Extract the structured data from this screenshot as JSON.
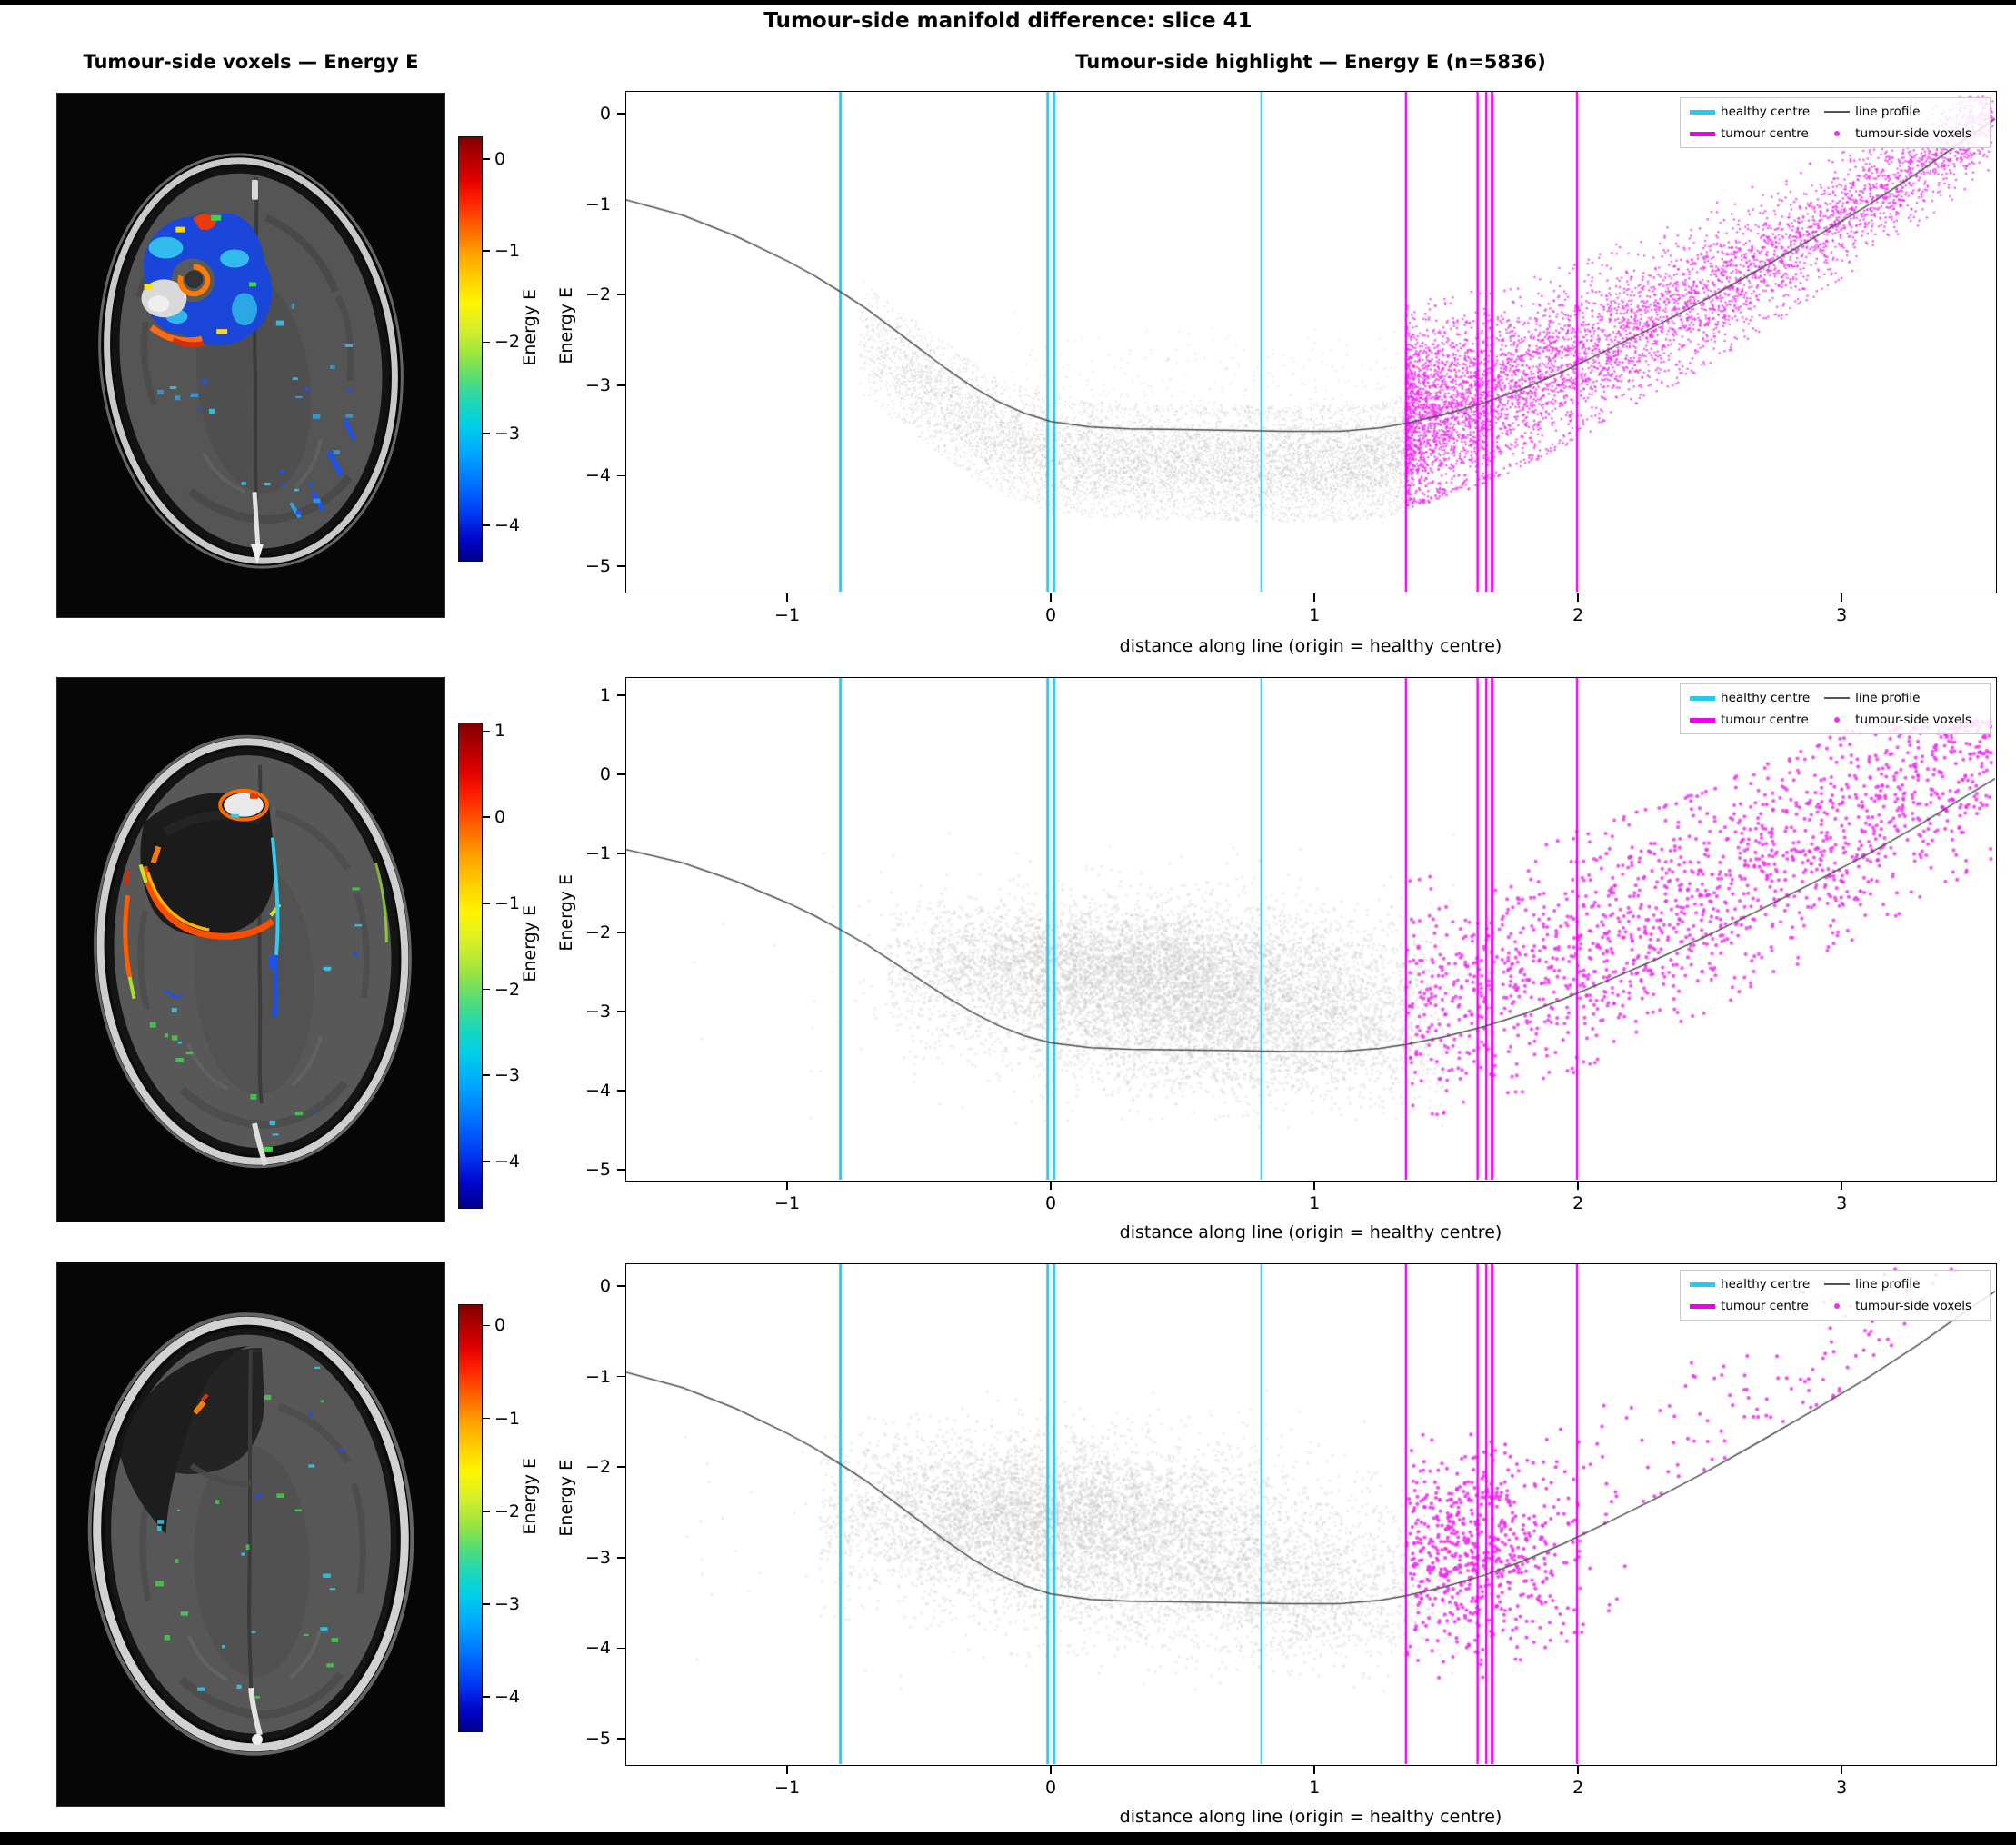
{
  "figure": {
    "suptitle": "Tumour-side manifold difference: slice 41",
    "background": "#ffffff",
    "border_color": "#000000"
  },
  "colors": {
    "healthy_centre_line": "#29c7ef",
    "tumour_centre_line": "#ee00ee",
    "tumour_scatter": "#ee30ee",
    "healthy_scatter": "#c4c4c4",
    "line_profile": "#4d4d4d",
    "axis_text": "#000000"
  },
  "left_panel": {
    "title": "Tumour-side voxels — Energy E",
    "colorbar_label": "Energy E"
  },
  "right_panel": {
    "title": "Tumour-side highlight — Energy E  (n=5836)",
    "xlabel": "distance along line  (origin = healthy centre)",
    "ylabel": "Energy E",
    "n_tumour_voxels": 5836
  },
  "legend": {
    "items": [
      {
        "label": "healthy centre",
        "swatch": "cyan-line"
      },
      {
        "label": "tumour centre",
        "swatch": "magenta-line"
      },
      {
        "label": "line profile",
        "swatch": "gray-line"
      },
      {
        "label": "tumour-side voxels",
        "swatch": "magenta-dot"
      }
    ]
  },
  "chart_data": [
    {
      "type": "scatter",
      "title": "Tumour-side highlight — Energy E  (n=5836)",
      "xlabel": "distance along line  (origin = healthy centre)",
      "ylabel": "Energy E",
      "xlim": [
        -1.614,
        3.589
      ],
      "ylim": [
        -5.3,
        0.25
      ],
      "xticks": [
        -1,
        0,
        1,
        2,
        3
      ],
      "yticks": [
        0,
        -1,
        -2,
        -3,
        -4,
        -5
      ],
      "vlines_healthy_centre": [
        -0.8,
        -0.012,
        0.012,
        0.8
      ],
      "vlines_tumour_centre": [
        1.35,
        1.622,
        1.655,
        1.677,
        2.0
      ],
      "line_profile": {
        "x": [
          -1.614,
          -1.4,
          -1.2,
          -1.0,
          -0.9,
          -0.8,
          -0.7,
          -0.6,
          -0.5,
          -0.4,
          -0.3,
          -0.2,
          -0.1,
          0,
          0.15,
          0.3,
          0.5,
          0.7,
          0.9,
          1.1,
          1.25,
          1.35,
          1.5,
          1.65,
          1.8,
          1.95,
          2.1,
          2.3,
          2.5,
          2.7,
          2.9,
          3.1,
          3.3,
          3.45,
          3.589
        ],
        "y": [
          -0.95,
          -1.12,
          -1.35,
          -1.63,
          -1.79,
          -1.97,
          -2.16,
          -2.38,
          -2.6,
          -2.82,
          -3.02,
          -3.19,
          -3.32,
          -3.41,
          -3.47,
          -3.49,
          -3.5,
          -3.51,
          -3.52,
          -3.52,
          -3.48,
          -3.43,
          -3.33,
          -3.2,
          -3.04,
          -2.85,
          -2.64,
          -2.35,
          -2.04,
          -1.71,
          -1.37,
          -1.02,
          -0.64,
          -0.33,
          -0.05
        ]
      },
      "healthy_cloud": {
        "seed": 101,
        "color": "#c4c4c4",
        "alpha": 0.35,
        "size": 1.15,
        "components": [
          {
            "type": "band",
            "n": 8200,
            "x0": -0.73,
            "x1": 1.38,
            "xpow": 0.82,
            "dy": -0.37,
            "sd": 0.32,
            "clampLo": -1.0,
            "clampHi": 0.28
          },
          {
            "type": "band",
            "n": 260,
            "x0": -0.15,
            "x1": 1.38,
            "xpow": 1.0,
            "dy": 0.5,
            "sd": 0.3,
            "clampLo": 0.2,
            "clampHi": 1.15
          }
        ]
      },
      "tumour_cloud": {
        "seed": 111,
        "n": 5836,
        "color": "#ee30ee",
        "alpha": 0.75,
        "size": 1.3,
        "components": [
          {
            "type": "band",
            "n": 5836,
            "x0": 1.35,
            "x1": 3.58,
            "xpow": 1.75,
            "dy": 0.05,
            "sd": 0.5,
            "sdSlope": -0.12,
            "clampLo": -0.95,
            "clampLoSlope": 0.18,
            "clampHi": 1.35,
            "clampHiSlope": -0.28,
            "ycap": 0.2
          }
        ]
      },
      "colorbar": {
        "label": "Energy E",
        "ticks": [
          0,
          -1,
          -2,
          -3,
          -4
        ],
        "vmax": 0.25,
        "vmin": -4.4
      }
    },
    {
      "type": "scatter",
      "title": "",
      "xlabel": "distance along line  (origin = healthy centre)",
      "ylabel": "Energy E",
      "xlim": [
        -1.614,
        3.589
      ],
      "ylim": [
        -5.15,
        1.23
      ],
      "xticks": [
        -1,
        0,
        1,
        2,
        3
      ],
      "yticks": [
        1,
        0,
        -1,
        -2,
        -3,
        -4,
        -5
      ],
      "vlines_healthy_centre": [
        -0.8,
        -0.012,
        0.012,
        0.8
      ],
      "vlines_tumour_centre": [
        1.35,
        1.622,
        1.655,
        1.677,
        2.0
      ],
      "line_profile": {
        "x": [
          -1.614,
          -1.4,
          -1.2,
          -1.0,
          -0.9,
          -0.8,
          -0.7,
          -0.6,
          -0.5,
          -0.4,
          -0.3,
          -0.2,
          -0.1,
          0,
          0.15,
          0.3,
          0.5,
          0.7,
          0.9,
          1.1,
          1.25,
          1.35,
          1.5,
          1.65,
          1.8,
          1.95,
          2.1,
          2.3,
          2.5,
          2.7,
          2.9,
          3.1,
          3.3,
          3.45,
          3.589
        ],
        "y": [
          -0.95,
          -1.12,
          -1.35,
          -1.63,
          -1.79,
          -1.97,
          -2.16,
          -2.38,
          -2.6,
          -2.82,
          -3.02,
          -3.19,
          -3.32,
          -3.41,
          -3.47,
          -3.49,
          -3.5,
          -3.51,
          -3.52,
          -3.52,
          -3.48,
          -3.43,
          -3.33,
          -3.2,
          -3.04,
          -2.85,
          -2.64,
          -2.35,
          -2.04,
          -1.71,
          -1.37,
          -1.02,
          -0.64,
          -0.33,
          -0.05
        ]
      },
      "healthy_cloud": {
        "seed": 202,
        "color": "#c4c4c4",
        "alpha": 0.28,
        "size": 1.75,
        "components": [
          {
            "type": "blob",
            "n": 5200,
            "cx": 0.42,
            "cy": -2.6,
            "sx": 0.52,
            "sy": 0.45,
            "xclip": [
              -0.62,
              1.48
            ],
            "yclip": [
              -4.45,
              -0.85
            ]
          },
          {
            "type": "blob",
            "n": 2300,
            "cx": 0.8,
            "cy": -3.35,
            "sx": 0.45,
            "sy": 0.4,
            "xclip": [
              -0.55,
              1.5
            ],
            "yclip": [
              -4.5,
              -1.5
            ]
          },
          {
            "type": "blob",
            "n": 1300,
            "cx": 0.05,
            "cy": -2.3,
            "sx": 0.38,
            "sy": 0.33,
            "xclip": [
              -0.62,
              1.2
            ],
            "yclip": [
              -4.0,
              -1.2
            ]
          },
          {
            "type": "blob",
            "n": 300,
            "cx": 0.4,
            "cy": -2.5,
            "sx": 0.85,
            "sy": 0.85,
            "xclip": [
              -1.45,
              1.55
            ],
            "yclip": [
              -4.6,
              -0.7
            ]
          }
        ]
      },
      "tumour_cloud": {
        "seed": 222,
        "n": 1650,
        "color": "#ee30ee",
        "alpha": 0.8,
        "size": 2.1,
        "components": [
          {
            "type": "band",
            "n": 1650,
            "x0": 1.35,
            "x1": 3.575,
            "xpow": 0.95,
            "dy": 0.5,
            "sd": 0.68,
            "clampLo": -1.0,
            "clampHi": 2.3,
            "clampHiSlope": -0.35,
            "ycap": 0.7
          }
        ]
      },
      "colorbar": {
        "label": "Energy E",
        "ticks": [
          1,
          0,
          -1,
          -2,
          -3,
          -4
        ],
        "vmax": 1.1,
        "vmin": -4.55
      }
    },
    {
      "type": "scatter",
      "title": "",
      "xlabel": "distance along line  (origin = healthy centre)",
      "ylabel": "Energy E",
      "xlim": [
        -1.614,
        3.589
      ],
      "ylim": [
        -5.3,
        0.25
      ],
      "xticks": [
        -1,
        0,
        1,
        2,
        3
      ],
      "yticks": [
        0,
        -1,
        -2,
        -3,
        -4,
        -5
      ],
      "vlines_healthy_centre": [
        -0.8,
        -0.012,
        0.012,
        0.8
      ],
      "vlines_tumour_centre": [
        1.35,
        1.622,
        1.655,
        1.677,
        2.0
      ],
      "line_profile": {
        "x": [
          -1.614,
          -1.4,
          -1.2,
          -1.0,
          -0.9,
          -0.8,
          -0.7,
          -0.6,
          -0.5,
          -0.4,
          -0.3,
          -0.2,
          -0.1,
          0,
          0.15,
          0.3,
          0.5,
          0.7,
          0.9,
          1.1,
          1.25,
          1.35,
          1.5,
          1.65,
          1.8,
          1.95,
          2.1,
          2.3,
          2.5,
          2.7,
          2.9,
          3.1,
          3.3,
          3.45,
          3.589
        ],
        "y": [
          -0.95,
          -1.12,
          -1.35,
          -1.63,
          -1.79,
          -1.97,
          -2.16,
          -2.38,
          -2.6,
          -2.82,
          -3.02,
          -3.19,
          -3.32,
          -3.41,
          -3.47,
          -3.49,
          -3.5,
          -3.51,
          -3.52,
          -3.52,
          -3.48,
          -3.43,
          -3.33,
          -3.2,
          -3.04,
          -2.85,
          -2.64,
          -2.35,
          -2.04,
          -1.71,
          -1.37,
          -1.02,
          -0.64,
          -0.33,
          -0.05
        ]
      },
      "healthy_cloud": {
        "seed": 303,
        "color": "#c4c4c4",
        "alpha": 0.28,
        "size": 1.75,
        "components": [
          {
            "type": "blob",
            "n": 5000,
            "cx": -0.05,
            "cy": -2.52,
            "sx": 0.45,
            "sy": 0.42,
            "xclip": [
              -0.88,
              1.5
            ],
            "yclip": [
              -4.4,
              -1.25
            ]
          },
          {
            "type": "blob",
            "n": 2500,
            "cx": 0.55,
            "cy": -3.15,
            "sx": 0.52,
            "sy": 0.42,
            "xclip": [
              -0.5,
              1.52
            ],
            "yclip": [
              -4.5,
              -1.8
            ]
          },
          {
            "type": "blob",
            "n": 600,
            "cx": 1.05,
            "cy": -3.6,
            "sx": 0.3,
            "sy": 0.3,
            "xclip": [
              0.3,
              1.55
            ],
            "yclip": [
              -4.4,
              -2.6
            ]
          },
          {
            "type": "blob",
            "n": 220,
            "cx": -0.1,
            "cy": -2.6,
            "sx": 0.75,
            "sy": 0.8,
            "xclip": [
              -1.5,
              1.55
            ],
            "yclip": [
              -4.5,
              -1.0
            ]
          }
        ]
      },
      "tumour_cloud": {
        "seed": 333,
        "n": 755,
        "color": "#ee30ee",
        "alpha": 0.85,
        "size": 2.1,
        "components": [
          {
            "type": "blob",
            "n": 640,
            "cx": 1.58,
            "cy": -2.95,
            "sx": 0.23,
            "sy": 0.58,
            "xclip": [
              1.352,
              2.2
            ],
            "yclip": [
              -4.35,
              -1.55
            ]
          },
          {
            "type": "band",
            "n": 115,
            "x0": 1.95,
            "x1": 3.45,
            "xpow": 1.0,
            "dy": 0.55,
            "sd": 0.4,
            "clampLo": 0.0,
            "clampHi": 1.4,
            "ycap": 0.3
          }
        ]
      },
      "colorbar": {
        "label": "Energy E",
        "ticks": [
          0,
          -1,
          -2,
          -3,
          -4
        ],
        "vmax": 0.23,
        "vmin": -4.38
      }
    }
  ]
}
